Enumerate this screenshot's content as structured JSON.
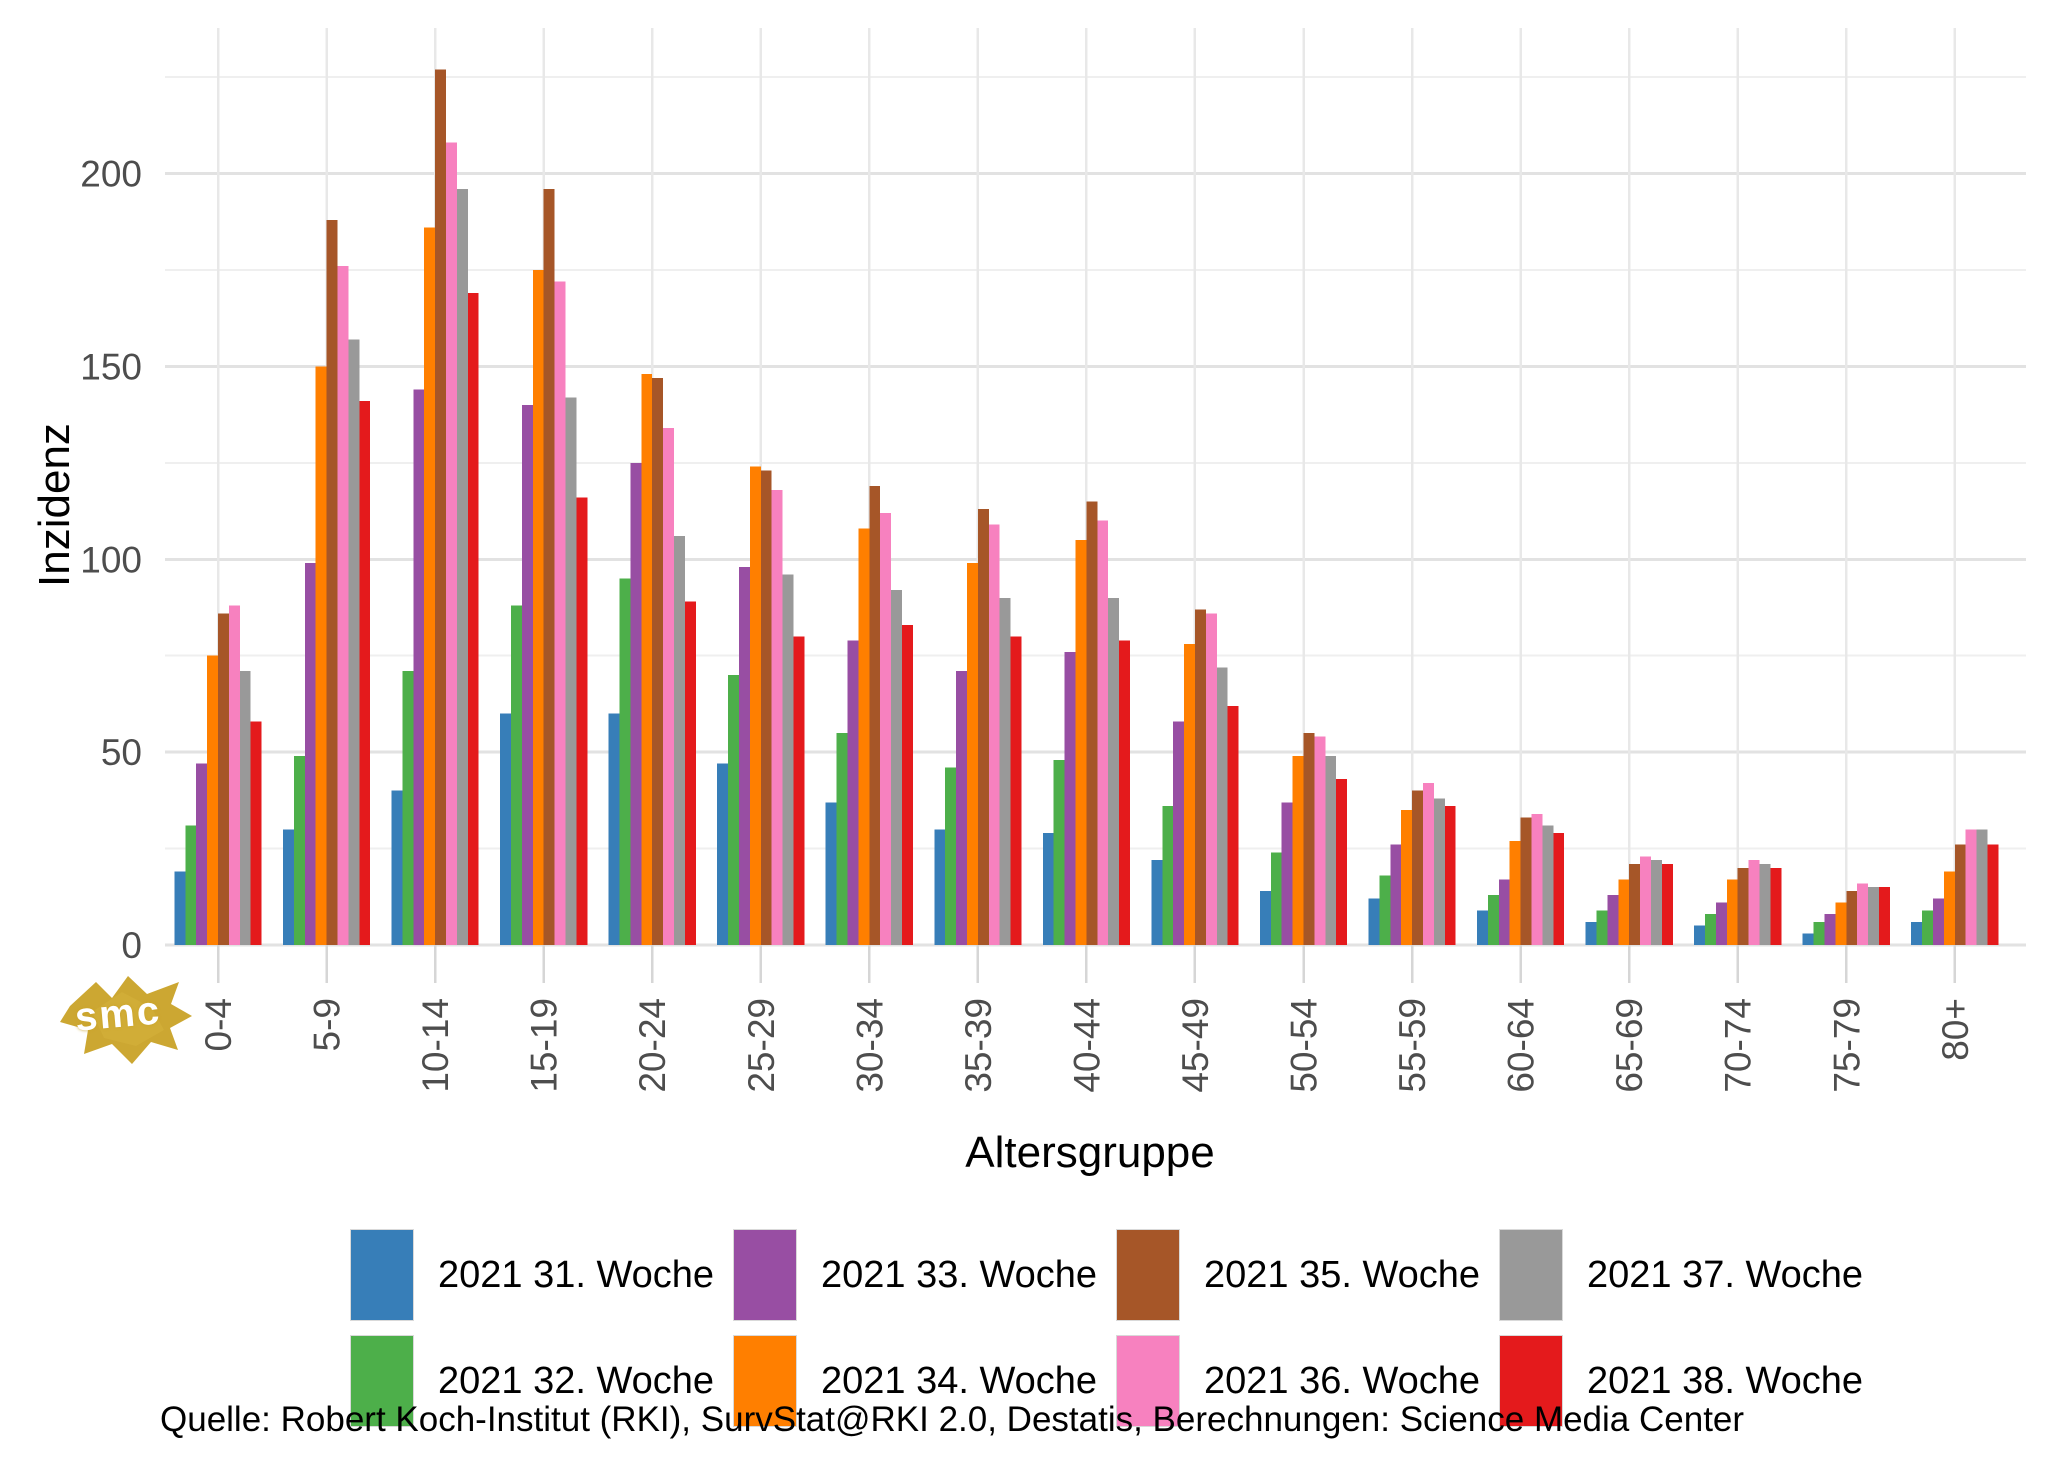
{
  "figure": {
    "source_line": "Quelle: Robert Koch-Institut (RKI), SurvStat@RKI 2.0, Destatis, Berechnungen: Science Media Center",
    "watermark_text": "smc",
    "watermark_color": "#c9a227"
  },
  "chart_data": {
    "type": "bar",
    "title": "",
    "xlabel": "Altersgruppe",
    "ylabel": "Inzidenz",
    "categories": [
      "0-4",
      "5-9",
      "10-14",
      "15-19",
      "20-24",
      "25-29",
      "30-34",
      "35-39",
      "40-44",
      "45-49",
      "50-54",
      "55-59",
      "60-64",
      "65-69",
      "70-74",
      "75-79",
      "80+"
    ],
    "y_ticks": [
      0,
      50,
      100,
      150,
      200
    ],
    "ylim": [
      0,
      238
    ],
    "grid": {
      "horizontal_every": 25,
      "vertical": "at category centers"
    },
    "legend_position": "bottom",
    "series": [
      {
        "name": "2021 31. Woche",
        "color": "#377eb8",
        "values": [
          19,
          30,
          40,
          60,
          60,
          47,
          37,
          30,
          29,
          22,
          14,
          12,
          9,
          6,
          5,
          3,
          6
        ]
      },
      {
        "name": "2021 32. Woche",
        "color": "#4daf4a",
        "values": [
          31,
          49,
          71,
          88,
          95,
          70,
          55,
          46,
          48,
          36,
          24,
          18,
          13,
          9,
          8,
          6,
          9
        ]
      },
      {
        "name": "2021 33. Woche",
        "color": "#984ea3",
        "values": [
          47,
          99,
          144,
          140,
          125,
          98,
          79,
          71,
          76,
          58,
          37,
          26,
          17,
          13,
          11,
          8,
          12
        ]
      },
      {
        "name": "2021 34. Woche",
        "color": "#ff7f00",
        "values": [
          75,
          150,
          186,
          175,
          148,
          124,
          108,
          99,
          105,
          78,
          49,
          35,
          27,
          17,
          17,
          11,
          19
        ]
      },
      {
        "name": "2021 35. Woche",
        "color": "#a65628",
        "values": [
          86,
          188,
          227,
          196,
          147,
          123,
          119,
          113,
          115,
          87,
          55,
          40,
          33,
          21,
          20,
          14,
          26
        ]
      },
      {
        "name": "2021 36. Woche",
        "color": "#f781bf",
        "values": [
          88,
          176,
          208,
          172,
          134,
          118,
          112,
          109,
          110,
          86,
          54,
          42,
          34,
          23,
          22,
          16,
          30
        ]
      },
      {
        "name": "2021 37. Woche",
        "color": "#999999",
        "values": [
          71,
          157,
          196,
          142,
          106,
          96,
          92,
          90,
          90,
          72,
          49,
          38,
          31,
          22,
          21,
          15,
          30
        ]
      },
      {
        "name": "2021 38. Woche",
        "color": "#e41a1c",
        "values": [
          58,
          141,
          169,
          116,
          89,
          80,
          83,
          80,
          79,
          62,
          43,
          36,
          29,
          21,
          20,
          15,
          26
        ]
      }
    ]
  }
}
